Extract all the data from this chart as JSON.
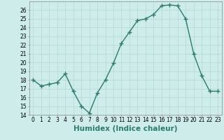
{
  "x": [
    0,
    1,
    2,
    3,
    4,
    5,
    6,
    7,
    8,
    9,
    10,
    11,
    12,
    13,
    14,
    15,
    16,
    17,
    18,
    19,
    20,
    21,
    22,
    23
  ],
  "y": [
    18.0,
    17.3,
    17.5,
    17.7,
    18.7,
    16.7,
    15.0,
    14.2,
    16.5,
    18.0,
    19.9,
    22.2,
    23.5,
    24.8,
    25.0,
    25.5,
    26.5,
    26.6,
    26.5,
    25.0,
    21.0,
    18.5,
    16.7,
    16.7
  ],
  "line_color": "#2d7a6e",
  "marker": "+",
  "marker_size": 4,
  "bg_color": "#ceecea",
  "grid_color": "#b2d8d4",
  "xlabel": "Humidex (Indice chaleur)",
  "xlim": [
    -0.5,
    23.5
  ],
  "ylim": [
    14,
    27
  ],
  "yticks": [
    14,
    15,
    16,
    17,
    18,
    19,
    20,
    21,
    22,
    23,
    24,
    25,
    26
  ],
  "xticks": [
    0,
    1,
    2,
    3,
    4,
    5,
    6,
    7,
    8,
    9,
    10,
    11,
    12,
    13,
    14,
    15,
    16,
    17,
    18,
    19,
    20,
    21,
    22,
    23
  ],
  "tick_label_fontsize": 5.5,
  "xlabel_fontsize": 7.5,
  "line_width": 1.0,
  "marker_color": "#2d7a6e"
}
